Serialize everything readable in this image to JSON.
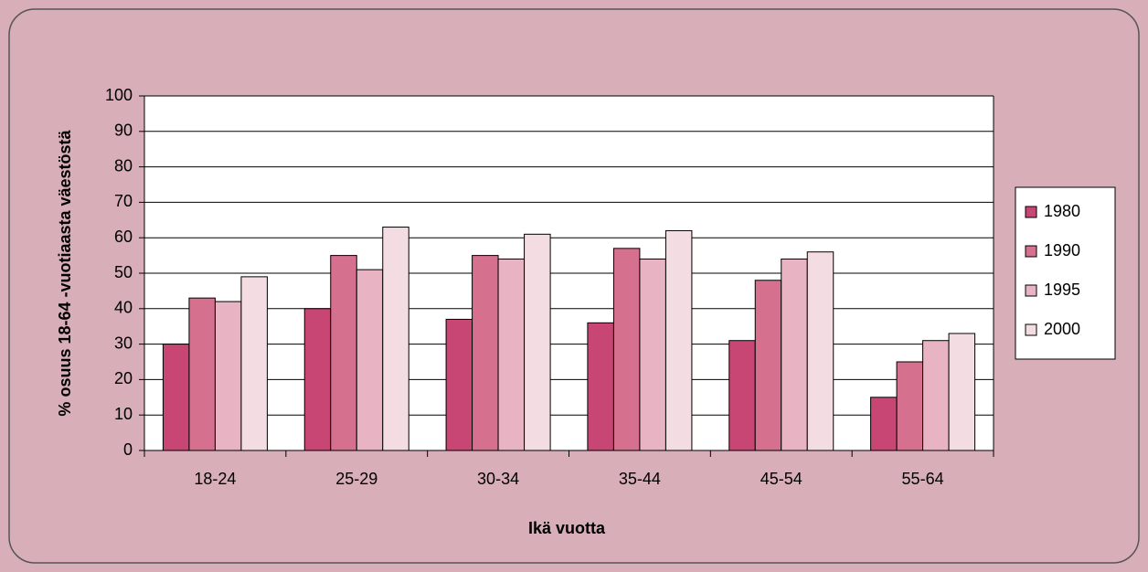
{
  "chart_data": {
    "type": "bar",
    "categories": [
      "18-24",
      "25-29",
      "30-34",
      "35-44",
      "45-54",
      "55-64"
    ],
    "series": [
      {
        "name": "1980",
        "color": "#c84673",
        "values": [
          30,
          40,
          37,
          36,
          31,
          15
        ]
      },
      {
        "name": "1990",
        "color": "#d6708f",
        "values": [
          43,
          55,
          55,
          57,
          48,
          25
        ]
      },
      {
        "name": "1995",
        "color": "#e8b4c4",
        "values": [
          42,
          51,
          54,
          54,
          54,
          31
        ]
      },
      {
        "name": "2000",
        "color": "#f3dde2",
        "values": [
          49,
          63,
          61,
          62,
          56,
          33
        ]
      }
    ],
    "x_label": "Ikä vuotta",
    "y_label": "% osuus 18-64 -vuotiaasta väestöstä",
    "ylim": [
      0,
      100
    ],
    "yticks": [
      0,
      10,
      20,
      30,
      40,
      50,
      60,
      70,
      80,
      90,
      100
    ],
    "grid": true,
    "legend": "right"
  }
}
